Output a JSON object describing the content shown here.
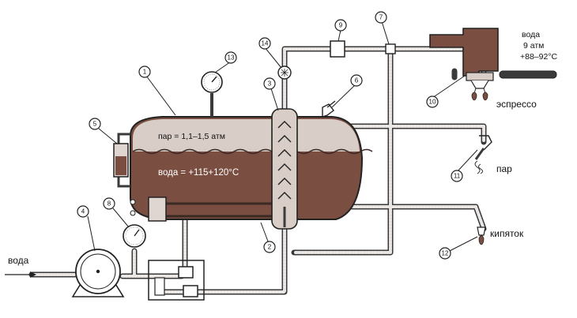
{
  "labels": {
    "water_in": "вода",
    "steam_zone": "пар = 1,1–1,5 атм",
    "water_zone": "вода = +115+120°C",
    "group_water": "вода",
    "group_pressure": "9 атм",
    "group_temp": "+88–92°C",
    "espresso": "эспрессо",
    "steam_out": "пар",
    "hot_water": "кипяток"
  },
  "tags": [
    "1",
    "2",
    "3",
    "4",
    "5",
    "6",
    "7",
    "8",
    "9",
    "10",
    "11",
    "12",
    "13",
    "14"
  ],
  "colors": {
    "boiler": "#7a4e41",
    "boiler_steam": "#d9cdc7",
    "pipe": "#3a3a3a",
    "outline": "#222222"
  }
}
